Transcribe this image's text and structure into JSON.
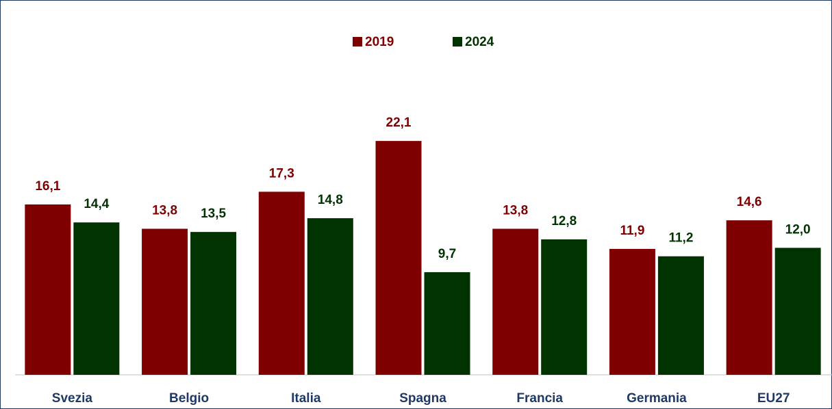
{
  "chart_data": {
    "type": "bar",
    "categories": [
      "Svezia",
      "Belgio",
      "Italia",
      "Spagna",
      "Francia",
      "Germania",
      "EU27"
    ],
    "series": [
      {
        "name": "2019",
        "color": "#7f0000",
        "values": [
          16.1,
          13.8,
          17.3,
          22.1,
          13.8,
          11.9,
          14.6
        ],
        "value_labels": [
          "16,1",
          "13,8",
          "17,3",
          "22,1",
          "13,8",
          "11,9",
          "14,6"
        ]
      },
      {
        "name": "2024",
        "color": "#003300",
        "values": [
          14.4,
          13.5,
          14.8,
          9.7,
          12.8,
          11.2,
          12.0
        ],
        "value_labels": [
          "14,4",
          "13,5",
          "14,8",
          "9,7",
          "12,8",
          "11,2",
          "12,0"
        ]
      }
    ],
    "ylim": [
      0,
      34
    ],
    "legend": "top"
  }
}
